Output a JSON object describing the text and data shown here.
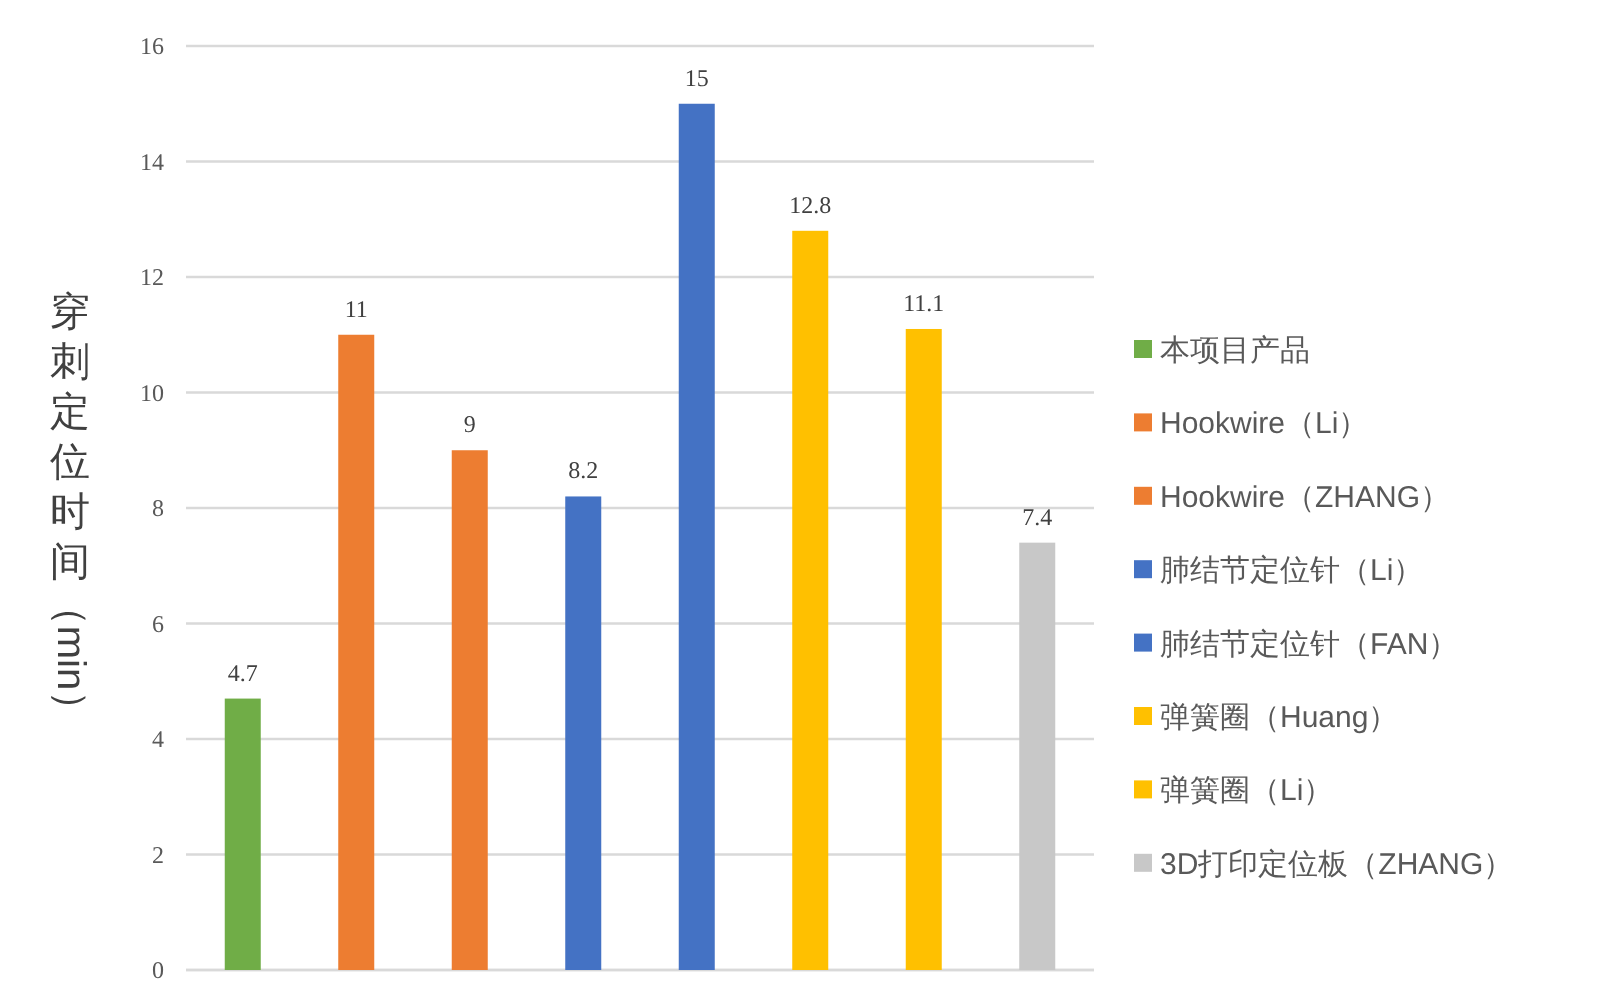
{
  "chart_data": {
    "type": "bar",
    "ylabel": "穿刺定位时间（min）",
    "categories": [
      null,
      null,
      null,
      null,
      null,
      null,
      null,
      null
    ],
    "ylim": [
      0,
      16
    ],
    "yticks": [
      0,
      2,
      4,
      6,
      8,
      10,
      12,
      14,
      16
    ],
    "grid": "y",
    "legend": "right",
    "data_labels": true,
    "tick_labels": "y",
    "series": [
      {
        "name": "本项目产品",
        "color": "#70ad47",
        "values": [
          4.7,
          null,
          null,
          null,
          null,
          null,
          null,
          null
        ]
      },
      {
        "name": "Hookwire（Li）",
        "color": "#ed7d31",
        "values": [
          null,
          11,
          null,
          null,
          null,
          null,
          null,
          null
        ]
      },
      {
        "name": "Hookwire（ZHANG）",
        "color": "#ed7d31",
        "values": [
          null,
          null,
          9,
          null,
          null,
          null,
          null,
          null
        ]
      },
      {
        "name": "肺结节定位针（Li）",
        "color": "#4472c4",
        "values": [
          null,
          null,
          null,
          8.2,
          null,
          null,
          null,
          null
        ]
      },
      {
        "name": "肺结节定位针（FAN）",
        "color": "#4472c4",
        "values": [
          null,
          null,
          null,
          null,
          15,
          null,
          null,
          null
        ]
      },
      {
        "name": "弹簧圈（Huang）",
        "color": "#ffc000",
        "values": [
          null,
          null,
          null,
          null,
          null,
          12.8,
          null,
          null
        ]
      },
      {
        "name": "弹簧圈（Li）",
        "color": "#ffc000",
        "values": [
          null,
          null,
          null,
          null,
          null,
          null,
          11.1,
          null
        ]
      },
      {
        "name": "3D打印定位板（ZHANG）",
        "color": "#c8c8c8",
        "values": [
          null,
          null,
          null,
          null,
          null,
          null,
          null,
          7.4
        ]
      }
    ]
  }
}
